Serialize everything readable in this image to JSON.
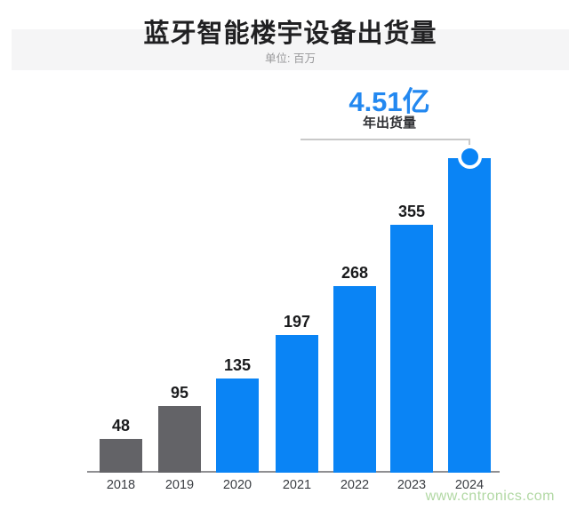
{
  "header": {
    "title": "蓝牙智能楼宇设备出货量",
    "subtitle": "单位: 百万"
  },
  "highlight": {
    "value": "4.51亿",
    "label": "年出货量",
    "applies_to": "2024"
  },
  "chart_data": {
    "type": "bar",
    "title": "蓝牙智能楼宇设备出货量",
    "unit_note": "单位: 百万",
    "categories": [
      "2018",
      "2019",
      "2020",
      "2021",
      "2022",
      "2023",
      "2024"
    ],
    "values": [
      48,
      95,
      135,
      197,
      268,
      355,
      451
    ],
    "value_labels": [
      "48",
      "95",
      "135",
      "197",
      "268",
      "355",
      ""
    ],
    "bar_colors": [
      "#636367",
      "#636367",
      "#0a84f5",
      "#0a84f5",
      "#0a84f5",
      "#0a84f5",
      "#0a84f5"
    ],
    "annotation": {
      "text": "4.51亿",
      "sub_text": "年出货量",
      "category": "2024"
    },
    "xlabel": "",
    "ylabel": "",
    "ylim": [
      0,
      480
    ],
    "grid": false,
    "value_axis_visible": false,
    "legend": null
  },
  "watermark": {
    "text": "www.cntronics.com"
  },
  "colors": {
    "bar_blue": "#0a84f5",
    "bar_gray": "#636367",
    "accent_text_blue": "#2388f0",
    "header_band_bg": "#f5f5f6",
    "leader_line": "#c9c9c9",
    "axis_line": "#8f8f92",
    "watermark_green": "#b1d8a3"
  }
}
